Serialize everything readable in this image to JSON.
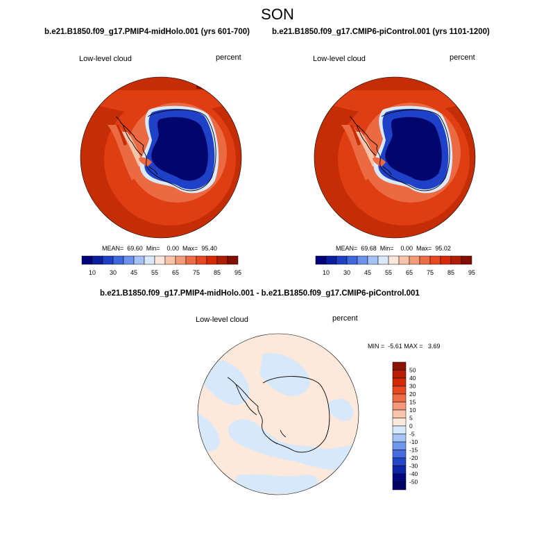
{
  "page": {
    "season": "SON",
    "diff_title": "b.e21.B1850.f09_g17.PMIP4-midHolo.001 - b.e21.B1850.f09_g17.CMIP6-piControl.001"
  },
  "panels": [
    {
      "subtitle": "b.e21.B1850.f09_g17.PMIP4-midHolo.001 (yrs 601-700)",
      "left_label": "Low-level cloud",
      "right_label": "percent",
      "stats": "MEAN=  69.60  Min=    0.00  Max=  95.40"
    },
    {
      "subtitle": "b.e21.B1850.f09_g17.CMIP6-piControl.001 (yrs 1101-1200)",
      "left_label": "Low-level cloud",
      "right_label": "percent",
      "stats": "MEAN=  69.68  Min=    0.00  Max=  95.02"
    }
  ],
  "diff_panel": {
    "left_label": "Low-level cloud",
    "right_label": "percent",
    "stats": "MIN =  -5.61 MAX =   3.69"
  },
  "colorbar_abs": {
    "labels": [
      "10",
      "30",
      "45",
      "55",
      "65",
      "75",
      "85",
      "95"
    ],
    "colors": [
      "#00007d",
      "#0a1fa0",
      "#1f40c4",
      "#3f66dc",
      "#6b91ec",
      "#a5c2f6",
      "#d9e8fb",
      "#fbe7db",
      "#f8c3a8",
      "#f39a78",
      "#ee6c45",
      "#e84820",
      "#d62a06",
      "#b01d03",
      "#810e00"
    ]
  },
  "colorbar_diff": {
    "labels": [
      "50",
      "40",
      "30",
      "20",
      "15",
      "10",
      "5",
      "0",
      "-5",
      "-10",
      "-15",
      "-20",
      "-30",
      "-40",
      "-50"
    ],
    "colors": [
      "#8c1300",
      "#b51e02",
      "#d22a05",
      "#e84a1f",
      "#ef6d45",
      "#f4977a",
      "#f9c6ad",
      "#fde9dc",
      "#d8e8fc",
      "#a6c4f6",
      "#7197ed",
      "#456de0",
      "#2447c8",
      "#0d26a6",
      "#00087e",
      "#000066"
    ]
  },
  "colors": {
    "ocean_high": "#c42d06",
    "ocean_mid": "#df3d12",
    "ocean_low": "#ec6a42",
    "continent_deep": "#00066c",
    "continent_mid": "#1f41c7",
    "diff_positive": "#fde9dc",
    "diff_negative": "#d7e8fb"
  }
}
